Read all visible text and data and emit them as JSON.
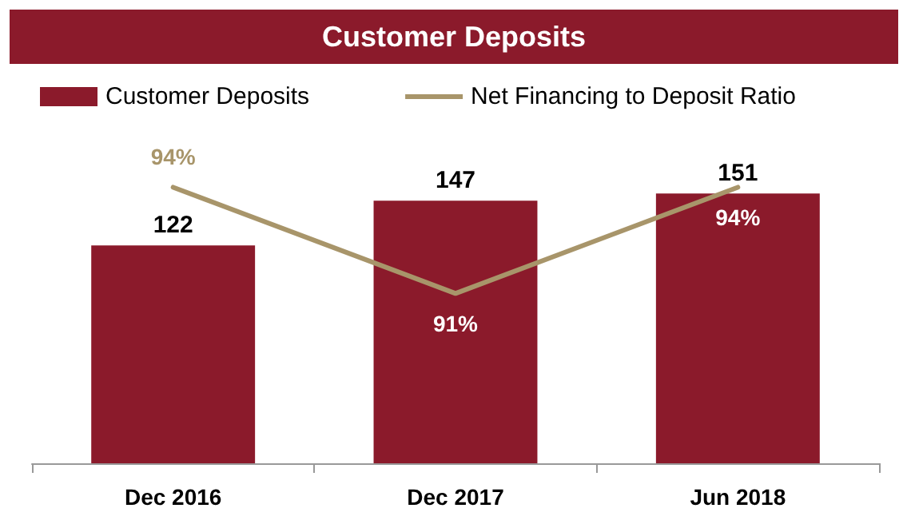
{
  "chart_data": {
    "type": "bar",
    "title": "Customer Deposits",
    "categories": [
      "Dec 2016",
      "Dec 2017",
      "Jun 2018"
    ],
    "series": [
      {
        "name": "Customer Deposits",
        "color": "#8b1a2b",
        "values": [
          122,
          147,
          151
        ]
      },
      {
        "name": "Net Financing to Deposit Ratio",
        "type": "line",
        "axis": "y2",
        "color": "#a8956a",
        "values": [
          94,
          91,
          94
        ],
        "value_labels": [
          "94%",
          "91%",
          "94%"
        ]
      }
    ],
    "data_labels": true,
    "tick_labels": "x",
    "legend": "top",
    "marker": "none"
  }
}
